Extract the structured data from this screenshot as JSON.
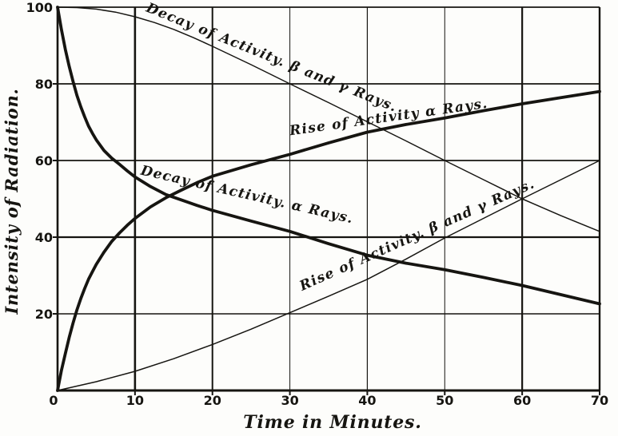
{
  "figure": {
    "background": "#fdfdfb",
    "ink": "#161511"
  },
  "chart_data": {
    "type": "line",
    "title": "",
    "xlabel": "Time in Minutes.",
    "ylabel": "Intensity of Radiation.",
    "xlim": [
      0,
      70
    ],
    "ylim": [
      0,
      100
    ],
    "x_ticks": [
      0,
      10,
      20,
      30,
      40,
      50,
      60,
      70
    ],
    "y_ticks": [
      20,
      40,
      60,
      80,
      100
    ],
    "grid": true,
    "legend_position": "labels-along-curves",
    "series": [
      {
        "name": "Decay of Activity. β and γ Rays.",
        "style": "thin",
        "points": [
          [
            0,
            100
          ],
          [
            2.5,
            99.9
          ],
          [
            5,
            99.5
          ],
          [
            7.5,
            98.7
          ],
          [
            10,
            97.5
          ],
          [
            12.5,
            96
          ],
          [
            15,
            94.2
          ],
          [
            17.5,
            92.1
          ],
          [
            20,
            89.8
          ],
          [
            22.5,
            87.4
          ],
          [
            25,
            85
          ],
          [
            27.5,
            82.5
          ],
          [
            30,
            80
          ],
          [
            35,
            75.1
          ],
          [
            40,
            70.1
          ],
          [
            45,
            65.1
          ],
          [
            50,
            60
          ],
          [
            55,
            55
          ],
          [
            60,
            50
          ],
          [
            65,
            45.6
          ],
          [
            70,
            41.5
          ]
        ]
      },
      {
        "name": "Rise of Activity α Rays.",
        "style": "thick",
        "points": [
          [
            0,
            0
          ],
          [
            0.5,
            5.2
          ],
          [
            1,
            9.6
          ],
          [
            1.5,
            13.8
          ],
          [
            2,
            17.6
          ],
          [
            2.5,
            21
          ],
          [
            3,
            24
          ],
          [
            3.5,
            26.6
          ],
          [
            4,
            29
          ],
          [
            4.5,
            31
          ],
          [
            5,
            32.9
          ],
          [
            6,
            36.1
          ],
          [
            7,
            38.9
          ],
          [
            8,
            41.1
          ],
          [
            9,
            43.1
          ],
          [
            10,
            44.9
          ],
          [
            12,
            47.9
          ],
          [
            14,
            50.3
          ],
          [
            16,
            52.3
          ],
          [
            18,
            54.2
          ],
          [
            20,
            55.9
          ],
          [
            25,
            58.9
          ],
          [
            30,
            61.6
          ],
          [
            35,
            64.6
          ],
          [
            40,
            67.4
          ],
          [
            45,
            69.4
          ],
          [
            50,
            71.1
          ],
          [
            55,
            73
          ],
          [
            60,
            74.8
          ],
          [
            65,
            76.4
          ],
          [
            70,
            78
          ]
        ]
      },
      {
        "name": "Decay of Activity. α Rays.",
        "style": "thick",
        "points": [
          [
            0,
            100
          ],
          [
            0.5,
            94.2
          ],
          [
            1,
            89
          ],
          [
            1.5,
            84.6
          ],
          [
            2,
            80.6
          ],
          [
            2.5,
            77
          ],
          [
            3,
            74
          ],
          [
            3.5,
            71.4
          ],
          [
            4,
            69
          ],
          [
            4.5,
            67.1
          ],
          [
            5,
            65.4
          ],
          [
            6,
            62.6
          ],
          [
            7,
            60.6
          ],
          [
            8,
            59
          ],
          [
            9,
            57.3
          ],
          [
            10,
            55.7
          ],
          [
            12,
            53.2
          ],
          [
            14,
            51.1
          ],
          [
            16,
            49.7
          ],
          [
            18,
            48.3
          ],
          [
            20,
            47
          ],
          [
            25,
            44.2
          ],
          [
            30,
            41.5
          ],
          [
            35,
            38.3
          ],
          [
            40,
            35.3
          ],
          [
            45,
            33.2
          ],
          [
            50,
            31.5
          ],
          [
            55,
            29.5
          ],
          [
            60,
            27.4
          ],
          [
            65,
            25
          ],
          [
            70,
            22.6
          ]
        ]
      },
      {
        "name": "Rise of Activity. β and γ Rays.",
        "style": "thin",
        "points": [
          [
            0,
            0
          ],
          [
            5,
            2.3
          ],
          [
            10,
            5
          ],
          [
            15,
            8.3
          ],
          [
            20,
            12
          ],
          [
            25,
            16
          ],
          [
            30,
            20.3
          ],
          [
            35,
            24.6
          ],
          [
            40,
            29
          ],
          [
            45,
            34.3
          ],
          [
            50,
            39.8
          ],
          [
            55,
            44.9
          ],
          [
            60,
            50
          ],
          [
            65,
            55
          ],
          [
            70,
            60
          ]
        ]
      }
    ]
  }
}
